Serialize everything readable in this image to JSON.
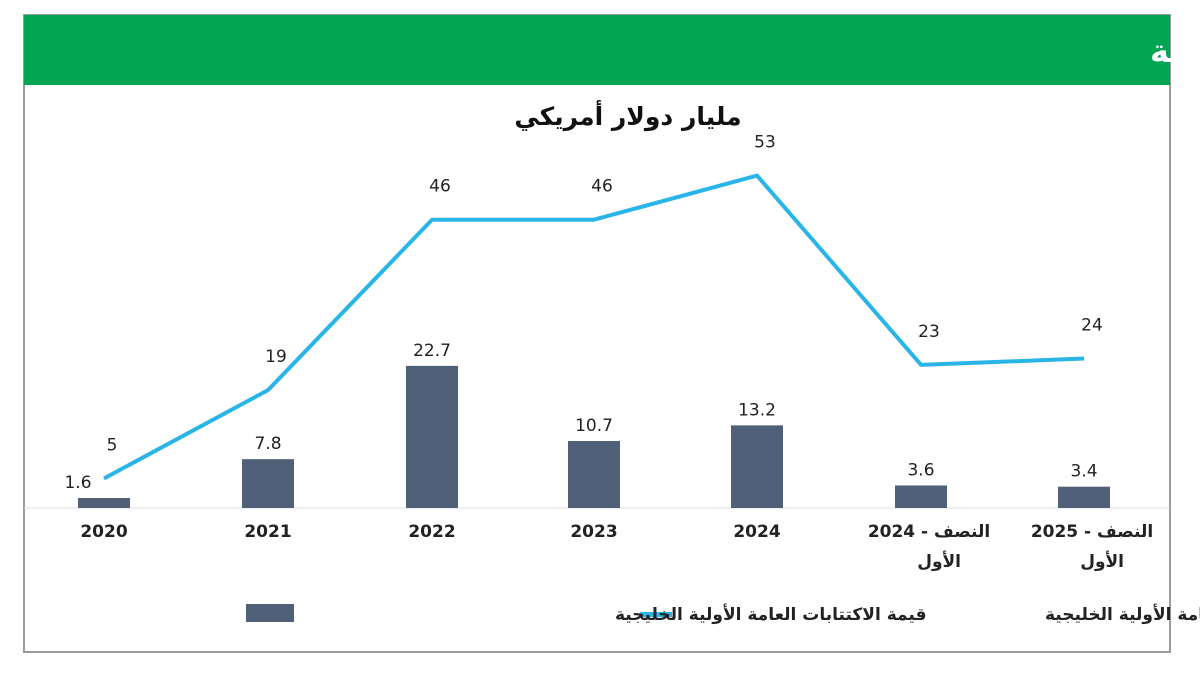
{
  "chart_data": {
    "type": "bar+line",
    "title": "قيمة الاكتتابات الأولية العامة للأسهم الخليجية",
    "subtitle": "مليار دولار أمريكي",
    "categories": [
      "2020",
      "2021",
      "2022",
      "2023",
      "2024",
      "2024 - النصف الأول",
      "2025 - النصف الأول"
    ],
    "series": [
      {
        "name": "قيمة الاكتتابات العامة الأولية الخليجية",
        "type": "bar",
        "color": "#4f6078",
        "values": [
          1.6,
          7.8,
          22.7,
          10.7,
          13.2,
          3.6,
          3.4
        ]
      },
      {
        "name": "عدد الاكتتابات العامة الأولية الخليجية",
        "type": "line",
        "color": "#29b5e8",
        "values": [
          5,
          19,
          46,
          46,
          53,
          23,
          24
        ]
      }
    ],
    "legend_position": "bottom",
    "grid": false,
    "header_color": "#00a651"
  }
}
